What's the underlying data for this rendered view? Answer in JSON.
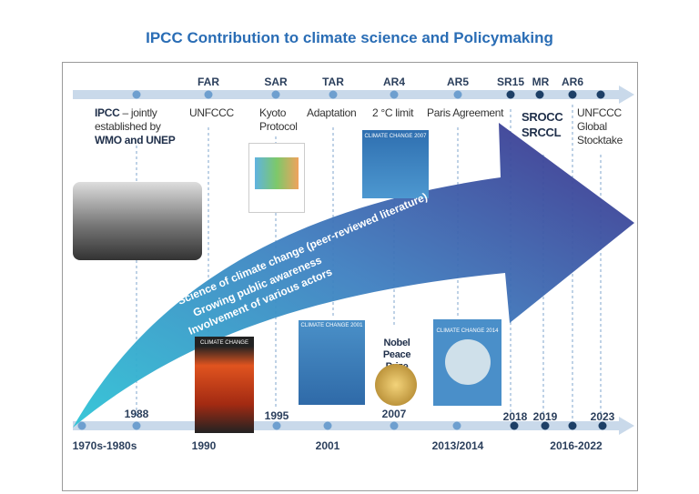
{
  "title": "IPCC Contribution to climate science and Policymaking",
  "top_timeline": {
    "reports": [
      "FAR",
      "SAR",
      "TAR",
      "AR4",
      "AR5",
      "SR15",
      "MR",
      "AR6"
    ],
    "events": {
      "ipcc_bold": "IPCC",
      "ipcc_rest": " – jointly",
      "ipcc_line2": "established by",
      "ipcc_line3": "WMO and UNEP",
      "unfccc": "UNFCCC",
      "kyoto1": "Kyoto",
      "kyoto2": "Protocol",
      "adaptation": "Adaptation",
      "limit": "2 °C limit",
      "paris": "Paris Agreement",
      "srocc": "SROCC",
      "srccl": "SRCCL",
      "gst1": "UNFCCC",
      "gst2": "Global",
      "gst3": "Stocktake"
    }
  },
  "bottom_timeline": {
    "years": [
      "1970s-1980s",
      "1988",
      "1990",
      "1995",
      "2001",
      "2007",
      "2013/2014",
      "2018",
      "2019",
      "2016-2022",
      "2023"
    ],
    "nobel1": "Nobel Peace",
    "nobel2": "Prize"
  },
  "arrow_text": [
    "Science of climate change (peer-reviewed literature)",
    "Growing public awareness",
    "Involvement of various actors"
  ],
  "covers": {
    "far": "CLIMATE CHANGE",
    "tar": "CLIMATE CHANGE 2001",
    "ar4": "CLIMATE CHANGE 2007",
    "ar5": "CLIMATE CHANGE 2014"
  },
  "colors": {
    "title": "#2a6db5",
    "timeline": "#c9d9ea",
    "dot_light": "#6e9fcf",
    "dot_dark": "#1d3f66",
    "arrow_start": "#2ec4d6",
    "arrow_end": "#3b2f8a"
  }
}
